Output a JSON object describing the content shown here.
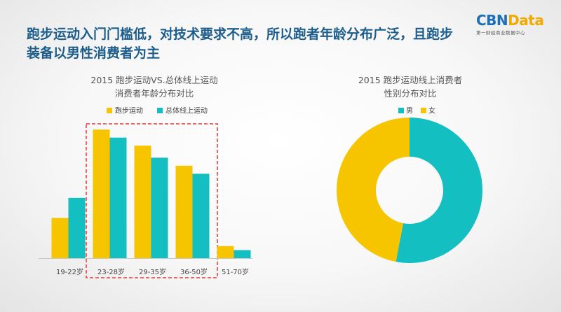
{
  "headline": "跑步运动入门门槛低，对技术要求不高，所以跑者年龄分布广泛，且跑步装备以男性消费者为主",
  "logo": {
    "part1": "CBN",
    "part2": "Data",
    "subtitle": "第一财经商业数据中心"
  },
  "colors": {
    "yellow": "#f7c500",
    "teal": "#13bfc0",
    "headline": "#1d5d8c",
    "dashed": "#e03a3a"
  },
  "chart_data": [
    {
      "type": "bar",
      "title": "2015 跑步运动VS.总体线上运动 消费者年龄分布对比",
      "title_lines": [
        "2015 跑步运动VS.总体线上运动",
        "消费者年龄分布对比"
      ],
      "legend_position": "top",
      "categories": [
        "19-22岁",
        "23-28岁",
        "29-35岁",
        "36-50岁",
        "51-70岁"
      ],
      "series": [
        {
          "name": "跑步运动",
          "color": "#f7c500",
          "values": [
            10,
            32,
            28,
            23,
            3
          ]
        },
        {
          "name": "总体线上运动",
          "color": "#13bfc0",
          "values": [
            15,
            30,
            25,
            21,
            2
          ]
        }
      ],
      "ylim": [
        0,
        35
      ],
      "highlighted_categories": [
        "23-28岁",
        "29-35岁",
        "36-50岁"
      ],
      "grid": false
    },
    {
      "type": "pie",
      "donut": true,
      "title": "2015 跑步运动线上消费者 性别分布对比",
      "title_lines": [
        "2015 跑步运动线上消费者",
        "性别分布对比"
      ],
      "legend_position": "top",
      "slices": [
        {
          "label": "男",
          "value": 53,
          "color": "#13bfc0"
        },
        {
          "label": "女",
          "value": 47,
          "color": "#f7c500"
        }
      ]
    }
  ]
}
